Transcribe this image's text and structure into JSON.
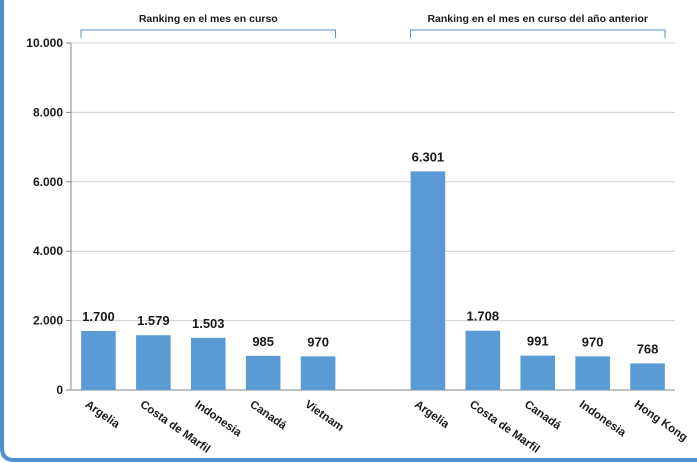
{
  "chart_data": {
    "type": "bar",
    "ylim": [
      0,
      10000
    ],
    "yticks": [
      "0",
      "2.000",
      "4.000",
      "6.000",
      "8.000",
      "10.000"
    ],
    "ytick_values": [
      0,
      2000,
      4000,
      6000,
      8000,
      10000
    ],
    "grid": true,
    "bar_color": "#5b9bd5",
    "frame_color": "#4f90d0",
    "groups": [
      {
        "title": "Ranking en el mes en curso",
        "categories": [
          "Argelia",
          "Costa de Marfil",
          "Indonesia",
          "Canadá",
          "Vietnam"
        ],
        "values": [
          1700,
          1579,
          1503,
          985,
          970
        ],
        "labels": [
          "1.700",
          "1.579",
          "1.503",
          "985",
          "970"
        ]
      },
      {
        "title": "Ranking en el mes en curso del año anterior",
        "categories": [
          "Argelia",
          "Costa de Marfil",
          "Canadá",
          "Indonesia",
          "Hong Kong"
        ],
        "values": [
          6301,
          1708,
          991,
          970,
          768
        ],
        "labels": [
          "6.301",
          "1.708",
          "991",
          "970",
          "768"
        ]
      }
    ]
  }
}
